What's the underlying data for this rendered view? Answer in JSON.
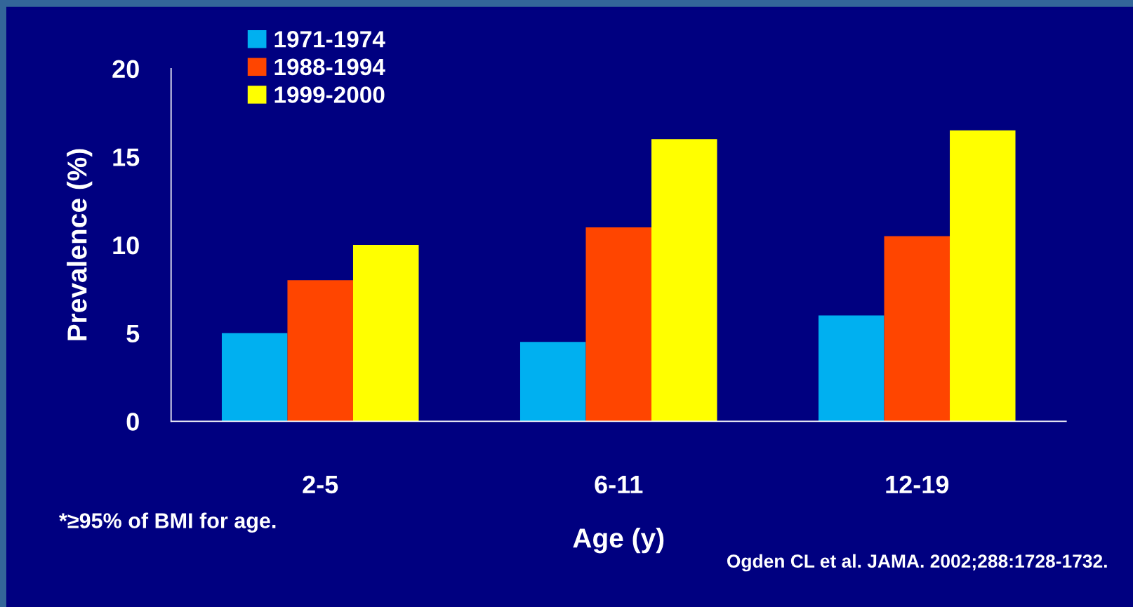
{
  "chart_data": {
    "type": "bar",
    "categories": [
      "2-5",
      "6-11",
      "12-19"
    ],
    "series": [
      {
        "name": "1971-1974",
        "color": "#00b0f0",
        "values": [
          5,
          4.5,
          6
        ]
      },
      {
        "name": "1988-1994",
        "color": "#ff4500",
        "values": [
          8,
          11,
          10.5
        ]
      },
      {
        "name": "1999-2000",
        "color": "#ffff00",
        "values": [
          10,
          16,
          16.5
        ]
      }
    ],
    "xlabel": "Age (y)",
    "ylabel": "Prevalence (%)",
    "ylim": [
      0,
      20
    ],
    "yticks": [
      0,
      5,
      10,
      15,
      20
    ],
    "legend": "top left",
    "grid": false,
    "annotations": [
      "*≥95% of BMI for age.",
      "Ogden CL et al. JAMA. 2002;288:1728-1732."
    ]
  }
}
